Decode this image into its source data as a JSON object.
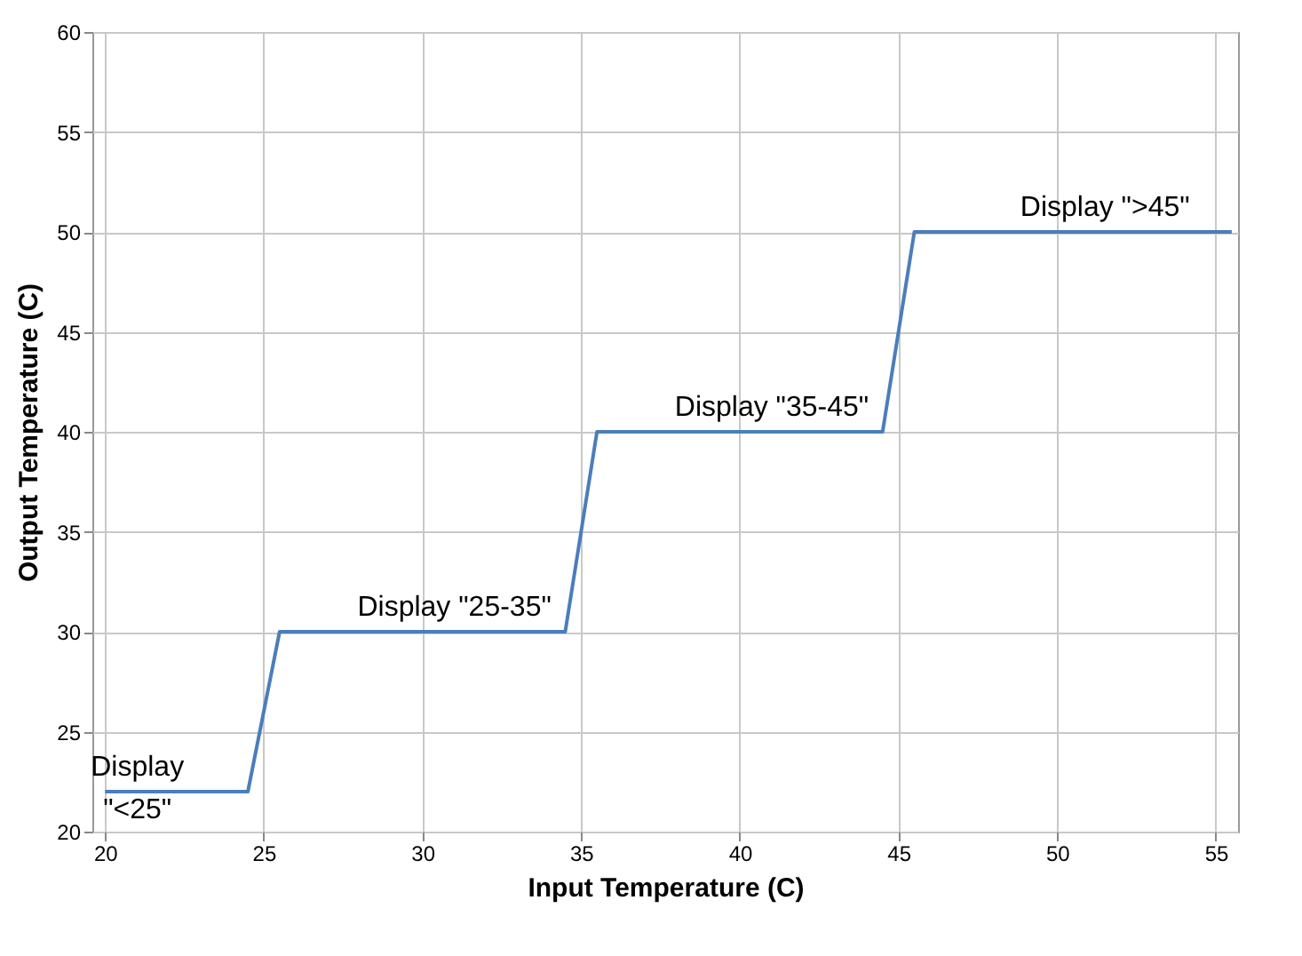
{
  "chart_data": {
    "type": "line",
    "xlabel": "Input Temperature (C)",
    "ylabel": "Output Temperature (C)",
    "x": [
      20,
      24.5,
      25.5,
      34.5,
      35.5,
      44.5,
      45.5,
      55.5
    ],
    "series": [
      {
        "color": "#4a7ebb",
        "values": [
          22,
          22,
          30,
          30,
          40,
          40,
          50,
          50
        ]
      }
    ],
    "xlim": [
      19.6,
      55.7
    ],
    "xticks": [
      20,
      25,
      30,
      35,
      40,
      45,
      50,
      55
    ],
    "ylim": [
      20,
      60
    ],
    "yticks": [
      20,
      25,
      30,
      35,
      40,
      45,
      50,
      55,
      60
    ],
    "grid": true,
    "marker": "none",
    "line_style": "solid",
    "annotations": [
      "Display\n\"<25\"",
      "Display \"25-35\"",
      "Display \"35-45\"",
      "Display \">45\""
    ]
  }
}
